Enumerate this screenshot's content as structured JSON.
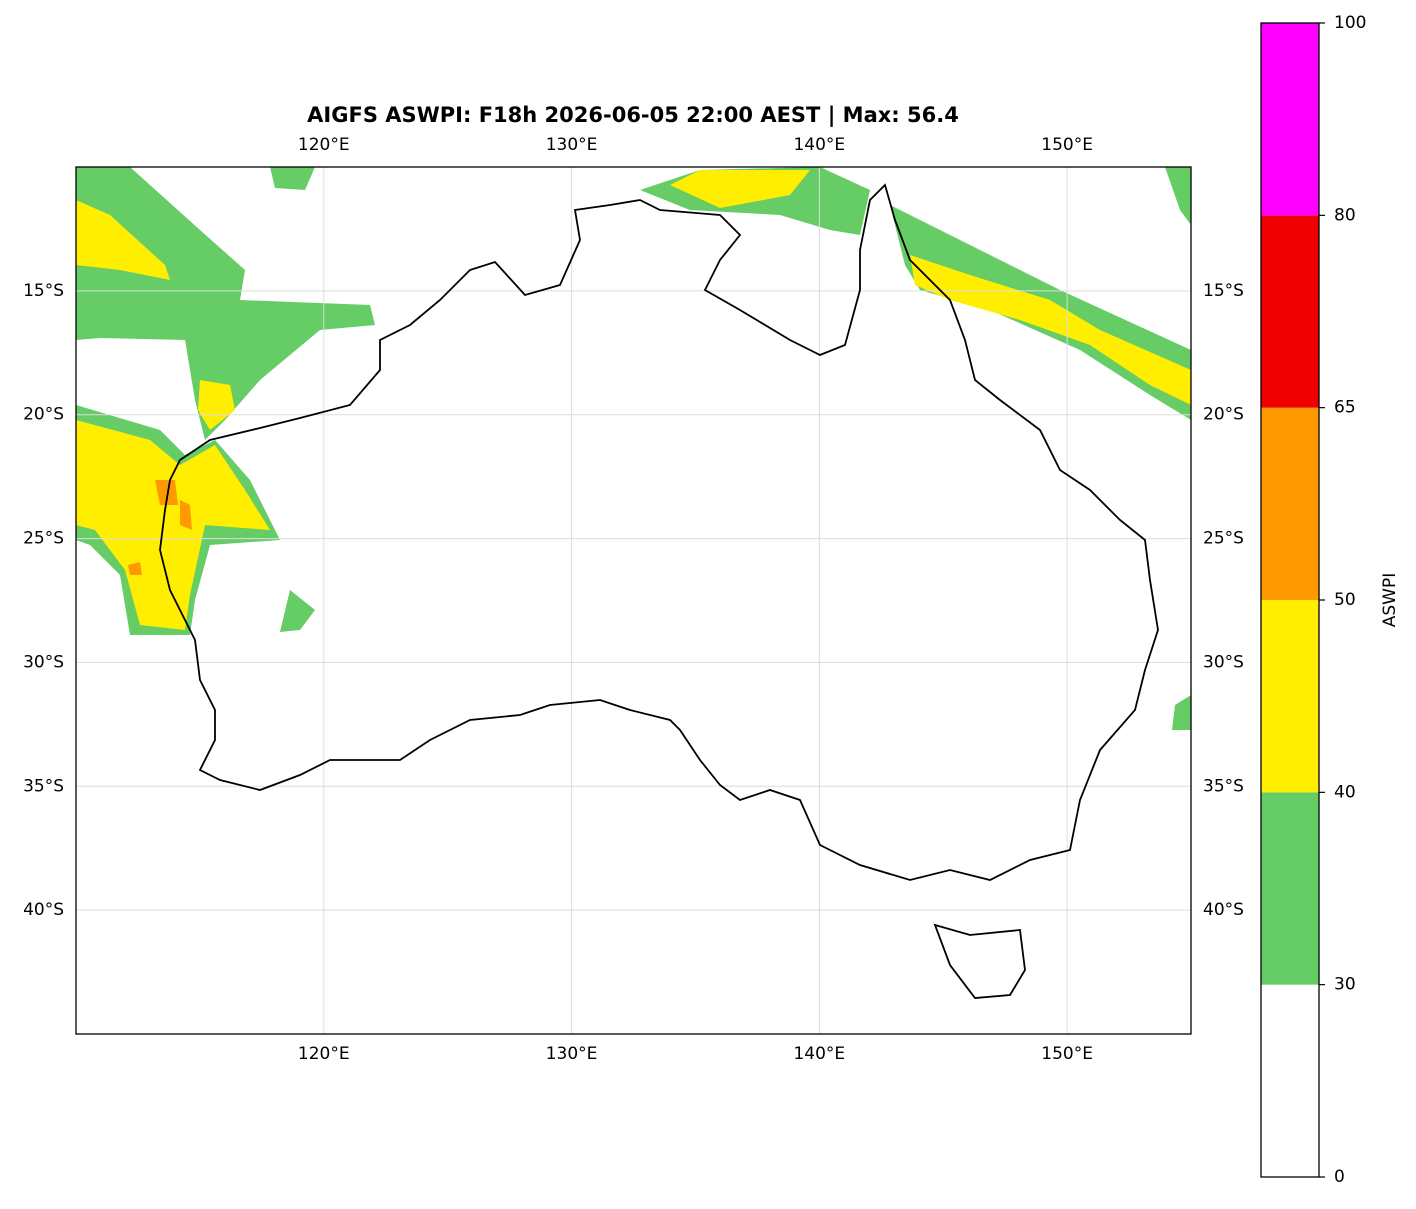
{
  "map": {
    "title": "AIGFS ASWPI: F18h 2026-06-05 22:00 AEST | Max: 56.4",
    "xlim": [
      110,
      155
    ],
    "ylim": [
      -45,
      -10
    ],
    "xticks": [
      {
        "value": 120,
        "label": "120°E"
      },
      {
        "value": 130,
        "label": "130°E"
      },
      {
        "value": 140,
        "label": "140°E"
      },
      {
        "value": 150,
        "label": "150°E"
      }
    ],
    "yticks": [
      {
        "value": -15,
        "label": "15°S"
      },
      {
        "value": -20,
        "label": "20°S"
      },
      {
        "value": -25,
        "label": "25°S"
      },
      {
        "value": -30,
        "label": "30°S"
      },
      {
        "value": -35,
        "label": "35°S"
      },
      {
        "value": -40,
        "label": "40°S"
      }
    ],
    "grid": true,
    "colorbar": {
      "label": "ASWPI",
      "levels": [
        0,
        30,
        40,
        50,
        65,
        80,
        100
      ],
      "colors": [
        "#ffffff",
        "#66cc66",
        "#ffee00",
        "#ff9900",
        "#ee0000",
        "#ff00ff"
      ]
    }
  }
}
